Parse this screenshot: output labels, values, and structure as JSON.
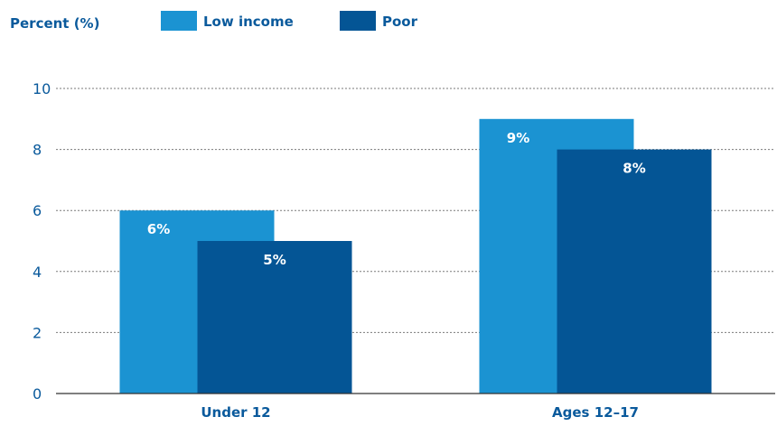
{
  "chart_data": {
    "type": "bar",
    "ylabel": "Percent (%)",
    "categories": [
      "Under 12",
      "Ages 12–17"
    ],
    "series": [
      {
        "name": "Low income",
        "values": [
          6,
          9
        ],
        "labels": [
          "6%",
          "9%"
        ],
        "color": "#1b93d2"
      },
      {
        "name": "Poor",
        "values": [
          5,
          8
        ],
        "labels": [
          "5%",
          "8%"
        ],
        "color": "#045595"
      }
    ],
    "ylim": [
      0,
      10
    ],
    "yticks": [
      0,
      2,
      4,
      6,
      8,
      10
    ],
    "grid": true,
    "legend_position": "top"
  }
}
